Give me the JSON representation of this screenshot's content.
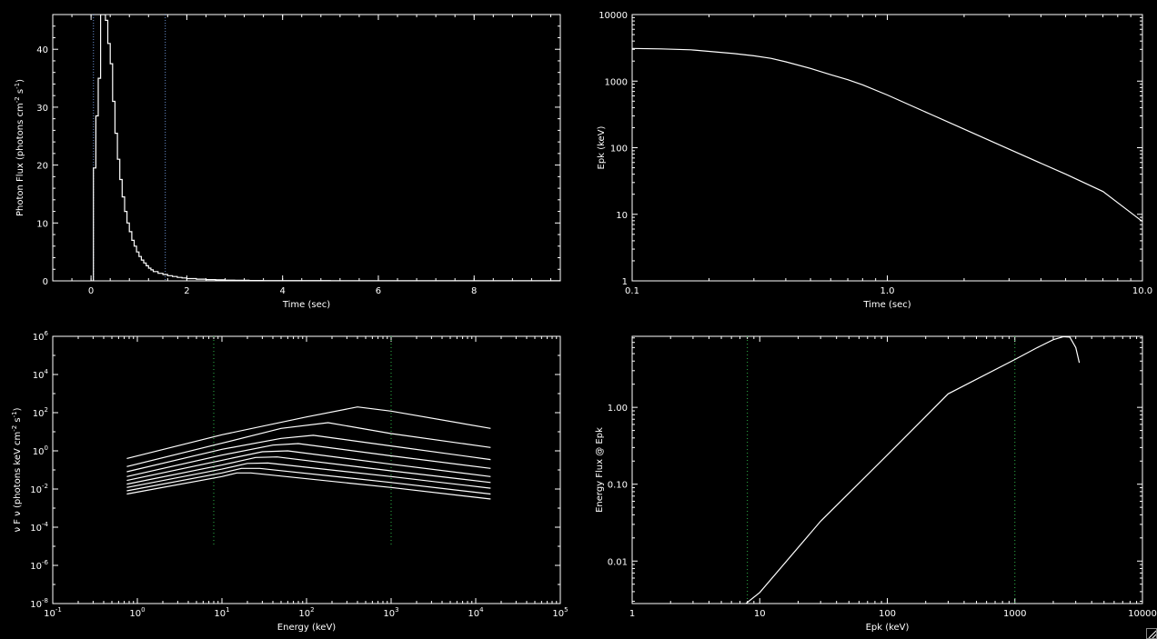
{
  "chart_data": [
    {
      "id": "lightcurve",
      "type": "line",
      "step": true,
      "xscale": "linear",
      "yscale": "linear",
      "xlim": [
        -0.8,
        9.8
      ],
      "ylim": [
        0,
        46
      ],
      "xlabel": "Time (sec)",
      "ylabel_parts": [
        {
          "t": "Photon Flux (photons cm"
        },
        {
          "t": "-2",
          "sup": true
        },
        {
          "t": " s"
        },
        {
          "t": "-1",
          "sup": true
        },
        {
          "t": ")"
        }
      ],
      "xticks": [
        {
          "v": 0,
          "label": "0"
        },
        {
          "v": 2,
          "label": "2"
        },
        {
          "v": 4,
          "label": "4"
        },
        {
          "v": 6,
          "label": "6"
        },
        {
          "v": 8,
          "label": "8"
        }
      ],
      "yticks": [
        {
          "v": 0,
          "label": "0"
        },
        {
          "v": 10,
          "label": "10"
        },
        {
          "v": 20,
          "label": "20"
        },
        {
          "v": 30,
          "label": "30"
        },
        {
          "v": 40,
          "label": "40"
        }
      ],
      "grid": false,
      "series": [
        {
          "color": "#ffffff",
          "x": [
            0.0,
            0.05,
            0.1,
            0.15,
            0.2,
            0.25,
            0.3,
            0.35,
            0.4,
            0.45,
            0.5,
            0.55,
            0.6,
            0.65,
            0.7,
            0.75,
            0.8,
            0.85,
            0.9,
            0.95,
            1.0,
            1.05,
            1.1,
            1.15,
            1.2,
            1.25,
            1.3,
            1.4,
            1.5,
            1.6,
            1.7,
            1.8,
            1.9,
            2.0,
            2.2,
            2.4,
            2.6,
            2.8,
            3.0,
            3.3,
            3.6,
            4.0,
            5.0,
            6.0,
            7.0,
            8.0,
            9.0,
            9.8
          ],
          "y": [
            0,
            19.5,
            28.5,
            35.0,
            46.0,
            46.0,
            45.0,
            41.0,
            37.5,
            31.0,
            25.5,
            21.0,
            17.5,
            14.5,
            12.0,
            10.0,
            8.5,
            7.0,
            6.0,
            5.0,
            4.2,
            3.6,
            3.1,
            2.6,
            2.2,
            1.9,
            1.6,
            1.3,
            1.1,
            0.9,
            0.75,
            0.6,
            0.5,
            0.4,
            0.3,
            0.22,
            0.17,
            0.13,
            0.1,
            0.07,
            0.05,
            0.04,
            0.03,
            0.02,
            0.02,
            0.02,
            0.02,
            0.02
          ]
        }
      ],
      "vlines": [
        {
          "x": 0.05,
          "color": "#6a8fd0",
          "dash": "1,2"
        },
        {
          "x": 1.55,
          "color": "#6a8fd0",
          "dash": "1,2"
        }
      ]
    },
    {
      "id": "epk-vs-time",
      "type": "line",
      "xscale": "log",
      "yscale": "log",
      "xlim": [
        0.1,
        10.0
      ],
      "ylim": [
        1,
        10000
      ],
      "xlabel": "Time (sec)",
      "ylabel_parts": [
        {
          "t": "Epk (keV)"
        }
      ],
      "xticks": [
        {
          "v": 0.1,
          "label": "0.1"
        },
        {
          "v": 1.0,
          "label": "1.0"
        },
        {
          "v": 10.0,
          "label": "10.0"
        }
      ],
      "yticks": [
        {
          "v": 1,
          "label": "1"
        },
        {
          "v": 10,
          "label": "10"
        },
        {
          "v": 100,
          "label": "100"
        },
        {
          "v": 1000,
          "label": "1000"
        },
        {
          "v": 10000,
          "label": "10000"
        }
      ],
      "grid": false,
      "series": [
        {
          "color": "#ffffff",
          "x": [
            0.1,
            0.13,
            0.17,
            0.2,
            0.25,
            0.3,
            0.35,
            0.4,
            0.5,
            0.6,
            0.7,
            0.8,
            1.0,
            1.5,
            2.0,
            3.0,
            5.0,
            7.0,
            10.0
          ],
          "y": [
            3100,
            3050,
            2950,
            2800,
            2600,
            2400,
            2200,
            1950,
            1550,
            1250,
            1050,
            880,
            620,
            310,
            190,
            95,
            40,
            22,
            7.8
          ]
        }
      ]
    },
    {
      "id": "nufnu-spectra",
      "type": "line",
      "xscale": "log",
      "yscale": "log",
      "xlim": [
        0.1,
        100000
      ],
      "ylim": [
        1e-08,
        1000000.0
      ],
      "xlabel": "Energy (keV)",
      "ylabel_parts": [
        {
          "t": "ν F ν (photons keV cm"
        },
        {
          "t": "-2",
          "sup": true
        },
        {
          "t": " s"
        },
        {
          "t": "-1",
          "sup": true
        },
        {
          "t": ")"
        }
      ],
      "xticks": [
        {
          "v": 0.1,
          "base": "10",
          "exp": "-1"
        },
        {
          "v": 1,
          "base": "10",
          "exp": "0"
        },
        {
          "v": 10,
          "base": "10",
          "exp": "1"
        },
        {
          "v": 100,
          "base": "10",
          "exp": "2"
        },
        {
          "v": 1000,
          "base": "10",
          "exp": "3"
        },
        {
          "v": 10000,
          "base": "10",
          "exp": "4"
        },
        {
          "v": 100000,
          "base": "10",
          "exp": "5"
        }
      ],
      "yticks": [
        {
          "v": 1e-08,
          "base": "10",
          "exp": "-8"
        },
        {
          "v": 1e-06,
          "base": "10",
          "exp": "-6"
        },
        {
          "v": 0.0001,
          "base": "10",
          "exp": "-4"
        },
        {
          "v": 0.01,
          "base": "10",
          "exp": "-2"
        },
        {
          "v": 1,
          "base": "10",
          "exp": "0"
        },
        {
          "v": 100,
          "base": "10",
          "exp": "2"
        },
        {
          "v": 10000,
          "base": "10",
          "exp": "4"
        },
        {
          "v": 1000000.0,
          "base": "10",
          "exp": "6"
        }
      ],
      "grid": false,
      "series": [
        {
          "color": "#ffffff",
          "x": [
            0.75,
            10,
            100,
            400,
            1000,
            15000
          ],
          "y": [
            0.4,
            7,
            60,
            200,
            120,
            15
          ]
        },
        {
          "color": "#ffffff",
          "x": [
            0.75,
            10,
            50,
            180,
            1000,
            15000
          ],
          "y": [
            0.15,
            2.5,
            15,
            30,
            8,
            1.5
          ]
        },
        {
          "color": "#ffffff",
          "x": [
            0.75,
            10,
            50,
            120,
            1000,
            15000
          ],
          "y": [
            0.08,
            1.2,
            4.5,
            6.5,
            1.8,
            0.35
          ]
        },
        {
          "color": "#ffffff",
          "x": [
            0.75,
            10,
            40,
            80,
            1000,
            15000
          ],
          "y": [
            0.045,
            0.6,
            2.0,
            2.4,
            0.55,
            0.12
          ]
        },
        {
          "color": "#ffffff",
          "x": [
            0.75,
            10,
            30,
            60,
            1000,
            15000
          ],
          "y": [
            0.028,
            0.32,
            0.9,
            1.0,
            0.2,
            0.045
          ]
        },
        {
          "color": "#ffffff",
          "x": [
            0.75,
            10,
            25,
            45,
            1000,
            15000
          ],
          "y": [
            0.018,
            0.18,
            0.45,
            0.48,
            0.09,
            0.022
          ]
        },
        {
          "color": "#ffffff",
          "x": [
            0.75,
            10,
            20,
            35,
            1000,
            15000
          ],
          "y": [
            0.012,
            0.11,
            0.22,
            0.23,
            0.045,
            0.011
          ]
        },
        {
          "color": "#ffffff",
          "x": [
            0.75,
            10,
            17,
            28,
            1000,
            15000
          ],
          "y": [
            0.008,
            0.07,
            0.12,
            0.12,
            0.022,
            0.0055
          ]
        },
        {
          "color": "#ffffff",
          "x": [
            0.75,
            10,
            15,
            22,
            1000,
            15000
          ],
          "y": [
            0.0055,
            0.045,
            0.07,
            0.07,
            0.012,
            0.003
          ]
        }
      ],
      "vlines": [
        {
          "x": 8,
          "ymin": 1e-05,
          "ymax": 1000000,
          "color": "#2fb84a",
          "dash": "1,3"
        },
        {
          "x": 1000,
          "ymin": 1e-05,
          "ymax": 1000000,
          "color": "#2fb84a",
          "dash": "1,3"
        }
      ]
    },
    {
      "id": "energy-flux-vs-epk",
      "type": "line",
      "xscale": "log",
      "yscale": "log",
      "xlim": [
        1,
        10000
      ],
      "ylim": [
        0.0028,
        8.4
      ],
      "xlabel": "Epk (keV)",
      "ylabel_parts": [
        {
          "t": "Energy Flux @ Epk"
        }
      ],
      "xticks": [
        {
          "v": 1,
          "label": "1"
        },
        {
          "v": 10,
          "label": "10"
        },
        {
          "v": 100,
          "label": "100"
        },
        {
          "v": 1000,
          "label": "1000"
        },
        {
          "v": 10000,
          "label": "10000"
        }
      ],
      "yticks": [
        {
          "v": 0.01,
          "label": "0.01"
        },
        {
          "v": 0.1,
          "label": "0.10"
        },
        {
          "v": 1,
          "label": "1.00"
        }
      ],
      "grid": false,
      "series": [
        {
          "color": "#ffffff",
          "x": [
            7.8,
            10,
            30,
            100,
            300,
            1000,
            1500,
            2000,
            2400,
            2700,
            3000,
            3200
          ],
          "y": [
            0.0028,
            0.0039,
            0.033,
            0.24,
            1.5,
            4.2,
            6.0,
            7.6,
            8.3,
            8.2,
            6.0,
            3.8
          ]
        }
      ],
      "vlines": [
        {
          "x": 8,
          "color": "#2fb84a",
          "dash": "1,3"
        },
        {
          "x": 1000,
          "color": "#2fb84a",
          "dash": "1,3"
        }
      ]
    }
  ]
}
